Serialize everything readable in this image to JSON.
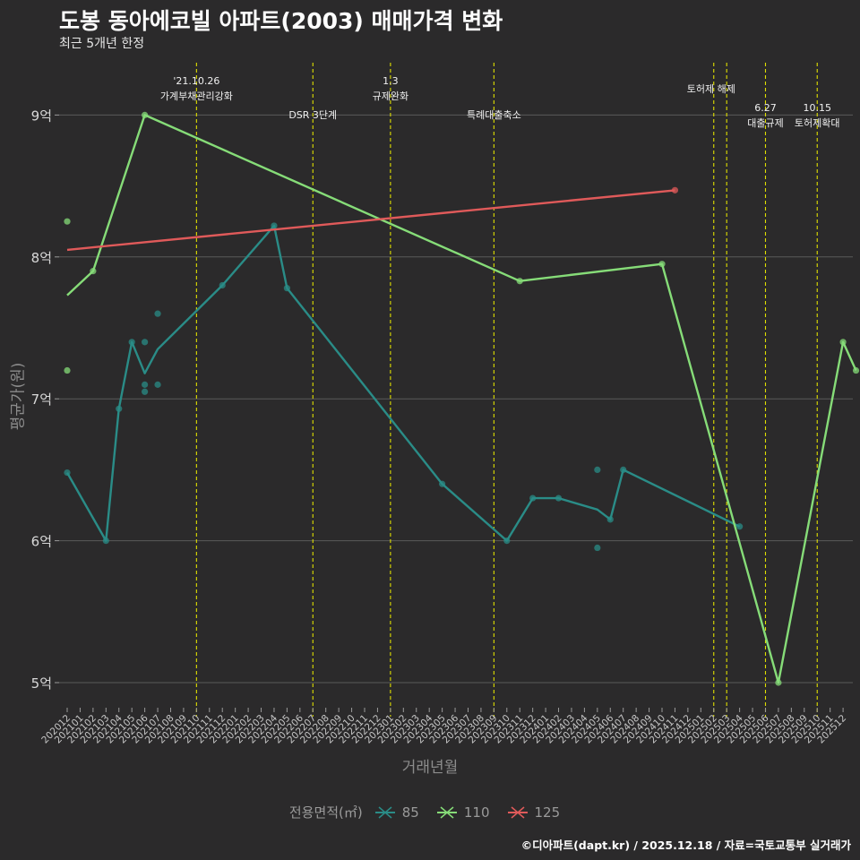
{
  "header": {
    "title": "도봉 동아에코빌 아파트(2003) 매매가격 변화",
    "subtitle": "최근 5개년 한정"
  },
  "footer": {
    "caption": "©디아파트(dapt.kr) / 2025.12.18 / 자료=국토교통부 실거래가"
  },
  "colors": {
    "background": "#2b2a2b",
    "grid": "#5a5a5a",
    "event_line": "#e0e000",
    "s85": "#2a8c87",
    "s110": "#86dc78",
    "s125": "#e05a5a"
  },
  "chart_data": {
    "type": "line",
    "title": "도봉 동아에코빌 아파트(2003) 매매가격 변화",
    "xlabel": "거래년월",
    "ylabel": "평균가(원)",
    "ylim": [
      4.8,
      9.2
    ],
    "yticks": [
      {
        "value": 5,
        "label": "5억"
      },
      {
        "value": 6,
        "label": "6억"
      },
      {
        "value": 7,
        "label": "7억"
      },
      {
        "value": 8,
        "label": "8억"
      },
      {
        "value": 9,
        "label": "9억"
      }
    ],
    "categories": [
      "202012",
      "202101",
      "202102",
      "202103",
      "202104",
      "202105",
      "202106",
      "202107",
      "202108",
      "202109",
      "202110",
      "202111",
      "202112",
      "202201",
      "202202",
      "202203",
      "202204",
      "202205",
      "202206",
      "202207",
      "202208",
      "202209",
      "202210",
      "202211",
      "202212",
      "202301",
      "202302",
      "202303",
      "202304",
      "202305",
      "202306",
      "202307",
      "202308",
      "202309",
      "202310",
      "202311",
      "202312",
      "202401",
      "202402",
      "202403",
      "202404",
      "202405",
      "202406",
      "202407",
      "202408",
      "202409",
      "202410",
      "202411",
      "202412",
      "202501",
      "202502",
      "202503",
      "202504",
      "202505",
      "202506",
      "202507",
      "202508",
      "202509",
      "202510",
      "202511",
      "202512"
    ],
    "legend_title": "전용면적(㎡)",
    "series": [
      {
        "name": "85",
        "color": "#2a8c87",
        "line": [
          {
            "x": 0,
            "y": 6.48
          },
          {
            "x": 3,
            "y": 6.0
          },
          {
            "x": 4,
            "y": 6.93
          },
          {
            "x": 5,
            "y": 7.4
          },
          {
            "x": 6,
            "y": 7.18
          },
          {
            "x": 7,
            "y": 7.35
          },
          {
            "x": 12,
            "y": 7.8
          },
          {
            "x": 16,
            "y": 8.22
          },
          {
            "x": 17,
            "y": 7.78
          },
          {
            "x": 29,
            "y": 6.4
          },
          {
            "x": 34,
            "y": 6.0
          },
          {
            "x": 36,
            "y": 6.3
          },
          {
            "x": 38,
            "y": 6.3
          },
          {
            "x": 41,
            "y": 6.22
          },
          {
            "x": 42,
            "y": 6.15
          },
          {
            "x": 43,
            "y": 6.5
          },
          {
            "x": 52,
            "y": 6.1
          }
        ],
        "points": [
          {
            "x": 0,
            "y": 6.48
          },
          {
            "x": 3,
            "y": 6.0
          },
          {
            "x": 4,
            "y": 6.93
          },
          {
            "x": 5,
            "y": 7.4
          },
          {
            "x": 6,
            "y": 7.4
          },
          {
            "x": 6,
            "y": 7.1
          },
          {
            "x": 6,
            "y": 7.05
          },
          {
            "x": 7,
            "y": 7.6
          },
          {
            "x": 7,
            "y": 7.1
          },
          {
            "x": 12,
            "y": 7.8
          },
          {
            "x": 16,
            "y": 8.22
          },
          {
            "x": 17,
            "y": 7.78
          },
          {
            "x": 29,
            "y": 6.4
          },
          {
            "x": 34,
            "y": 6.0
          },
          {
            "x": 36,
            "y": 6.3
          },
          {
            "x": 38,
            "y": 6.3
          },
          {
            "x": 41,
            "y": 6.5
          },
          {
            "x": 41,
            "y": 5.95
          },
          {
            "x": 42,
            "y": 6.15
          },
          {
            "x": 43,
            "y": 6.5
          },
          {
            "x": 52,
            "y": 6.1
          }
        ]
      },
      {
        "name": "110",
        "color": "#86dc78",
        "line": [
          {
            "x": 0,
            "y": 7.73
          },
          {
            "x": 2,
            "y": 7.9
          },
          {
            "x": 6,
            "y": 9.0
          },
          {
            "x": 35,
            "y": 7.83
          },
          {
            "x": 46,
            "y": 7.95
          },
          {
            "x": 55,
            "y": 5.0
          },
          {
            "x": 60,
            "y": 7.4
          },
          {
            "x": 61,
            "y": 7.2
          }
        ],
        "points": [
          {
            "x": 0,
            "y": 8.25
          },
          {
            "x": 0,
            "y": 7.2
          },
          {
            "x": 2,
            "y": 7.9
          },
          {
            "x": 6,
            "y": 9.0
          },
          {
            "x": 35,
            "y": 7.83
          },
          {
            "x": 46,
            "y": 7.95
          },
          {
            "x": 55,
            "y": 5.0
          },
          {
            "x": 60,
            "y": 7.4
          },
          {
            "x": 61,
            "y": 7.2
          }
        ]
      },
      {
        "name": "125",
        "color": "#e05a5a",
        "line": [
          {
            "x": 0,
            "y": 8.05
          },
          {
            "x": 47,
            "y": 8.47
          }
        ],
        "points": [
          {
            "x": 47,
            "y": 8.47
          }
        ]
      }
    ],
    "events": [
      {
        "x": 10,
        "lines": [
          "'21.10.26",
          "가계부채관리강화"
        ],
        "row": 0
      },
      {
        "x": 19,
        "lines": [
          "DSR 3단계"
        ],
        "row": 1
      },
      {
        "x": 25,
        "lines": [
          "1.3",
          "규제완화"
        ],
        "row": 0
      },
      {
        "x": 33,
        "lines": [
          "특례대출축소"
        ],
        "row": 1
      },
      {
        "x": 50,
        "lines": [],
        "row": 0
      },
      {
        "x": 51,
        "lines": [
          "토허제 해제"
        ],
        "row": 0,
        "label_x": 49.8
      },
      {
        "x": 54,
        "lines": [
          "6.27",
          "대출규제"
        ],
        "row": 2
      },
      {
        "x": 58,
        "lines": [
          "10.15",
          "토허제확대"
        ],
        "row": 2
      }
    ]
  }
}
